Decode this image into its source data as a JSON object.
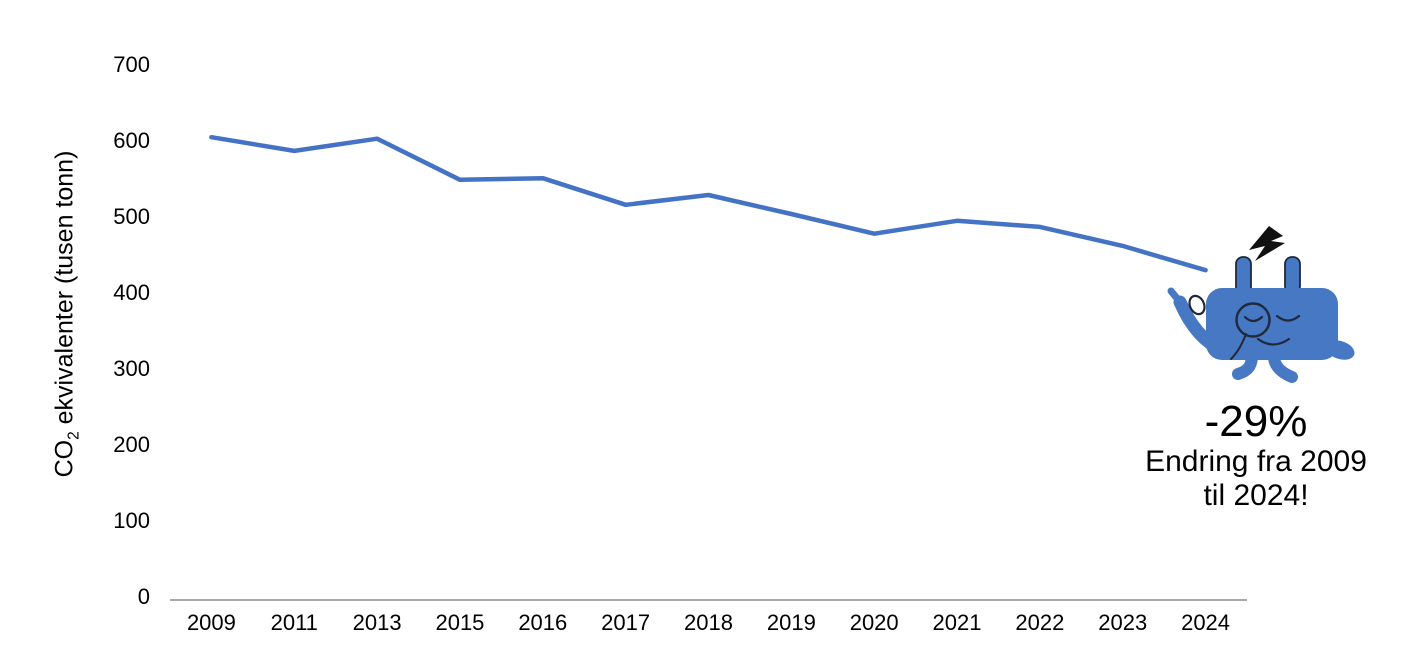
{
  "chart_data": {
    "type": "line",
    "title": "",
    "xlabel": "",
    "ylabel": "CO2 ekvivalenter (tusen tonn)",
    "ylabel_parts": {
      "prefix": "CO",
      "subscript": "2",
      "suffix": " ekvivalenter (tusen tonn)"
    },
    "categories": [
      "2009",
      "2011",
      "2013",
      "2015",
      "2016",
      "2017",
      "2018",
      "2019",
      "2020",
      "2021",
      "2022",
      "2023",
      "2024"
    ],
    "series": [
      {
        "name": "CO2-ekvivalenter (tusen tonn)",
        "values": [
          605,
          587,
          603,
          549,
          551,
          516,
          529,
          504,
          478,
          495,
          487,
          462,
          430
        ]
      }
    ],
    "ylim": [
      0,
      700
    ],
    "yticks": [
      0,
      100,
      200,
      300,
      400,
      500,
      600,
      700
    ],
    "grid": false,
    "legend_position": "none",
    "line_color": "#4472C4",
    "axis_color": "#8C8C8C",
    "text_color": "#000000"
  },
  "annotation": {
    "headline": "-29%",
    "caption_line1": "Endring fra 2009",
    "caption_line2": "til 2024!"
  },
  "mascot": {
    "icon": "electric-plug-mascot-icon",
    "body_color": "#4678C4",
    "outline_color": "#20283A",
    "hand_color": "#FFFFFF"
  }
}
